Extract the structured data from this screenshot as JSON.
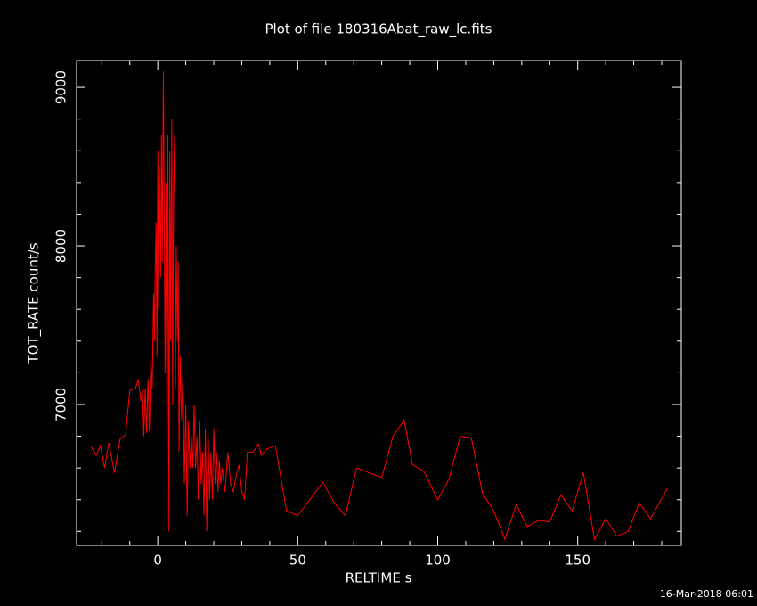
{
  "chart_data": {
    "type": "line",
    "title": "Plot of file 180316Abat_raw_lc.fits",
    "x_label": "RELTIME  s",
    "y_label": "TOT_RATE  count/s",
    "timestamp": "16-Mar-2018 06:01",
    "color": "#ff0000",
    "xlim": [
      -29,
      187
    ],
    "ylim": [
      6112,
      9169
    ],
    "xticks": [
      0,
      50,
      100,
      150
    ],
    "yticks": [
      7000,
      8000,
      9000
    ],
    "xminorticks": [
      -20,
      -10,
      10,
      20,
      30,
      40,
      60,
      70,
      80,
      90,
      110,
      120,
      130,
      140,
      160,
      170,
      180
    ],
    "yminorticks": [
      6200,
      6400,
      6600,
      6800,
      7200,
      7400,
      7600,
      7800,
      8200,
      8400,
      8600,
      8800
    ],
    "x": [
      -24,
      -22,
      -20.5,
      -19,
      -17.5,
      -15.5,
      -13.5,
      -11.5,
      -10,
      -8,
      -7,
      -6,
      -5.5,
      -5,
      -4.5,
      -4,
      -3.5,
      -3,
      -2.5,
      -2,
      -1.5,
      -1.2,
      -1,
      -0.6,
      -0.3,
      0,
      0.3,
      0.6,
      1,
      1.3,
      1.6,
      2,
      2.3,
      2.6,
      3,
      3.3,
      3.6,
      4,
      4.3,
      4.6,
      5,
      5.3,
      5.6,
      6,
      6.3,
      6.6,
      7,
      7.3,
      7.6,
      8,
      8.5,
      9,
      9.5,
      10,
      10.5,
      11,
      11.5,
      12,
      12.5,
      13,
      13.5,
      14,
      14.5,
      15,
      15.5,
      16,
      16.5,
      17,
      17.5,
      18,
      18.5,
      19,
      19.5,
      20,
      20.5,
      21,
      21.5,
      22,
      22.5,
      23,
      24,
      25,
      26,
      27,
      28,
      29,
      30,
      31,
      32,
      34,
      36,
      37,
      39,
      42,
      46,
      50,
      59,
      63,
      67,
      71,
      80,
      84,
      88,
      91,
      95,
      100,
      104,
      108,
      112,
      116,
      120,
      124,
      128,
      132,
      136,
      140,
      144,
      148,
      152,
      156,
      160,
      164,
      168,
      172,
      176,
      182
    ],
    "values": [
      6740,
      6680,
      6740,
      6600,
      6760,
      6570,
      6780,
      6810,
      7090,
      7100,
      7160,
      7020,
      7100,
      6800,
      7100,
      6820,
      7160,
      6830,
      7280,
      7100,
      7700,
      7400,
      7800,
      8150,
      7300,
      8600,
      7600,
      8500,
      7800,
      8700,
      7900,
      9100,
      8200,
      7200,
      8400,
      6600,
      8700,
      6200,
      8600,
      7400,
      8800,
      7000,
      8300,
      8700,
      7100,
      8000,
      7400,
      7900,
      6700,
      7300,
      6900,
      7200,
      6500,
      7000,
      6300,
      6900,
      6600,
      6800,
      6600,
      7000,
      6600,
      6800,
      6400,
      6900,
      6500,
      6700,
      6300,
      6850,
      6200,
      6800,
      6400,
      6700,
      6400,
      6850,
      6500,
      6700,
      6450,
      6650,
      6500,
      6600,
      6450,
      6700,
      6500,
      6450,
      6550,
      6620,
      6450,
      6400,
      6700,
      6700,
      6750,
      6680,
      6720,
      6740,
      6330,
      6300,
      6510,
      6380,
      6300,
      6600,
      6540,
      6800,
      6900,
      6620,
      6580,
      6400,
      6530,
      6800,
      6790,
      6440,
      6330,
      6150,
      6370,
      6230,
      6270,
      6260,
      6430,
      6330,
      6570,
      6150,
      6280,
      6170,
      6200,
      6380,
      6280,
      6470
    ]
  }
}
